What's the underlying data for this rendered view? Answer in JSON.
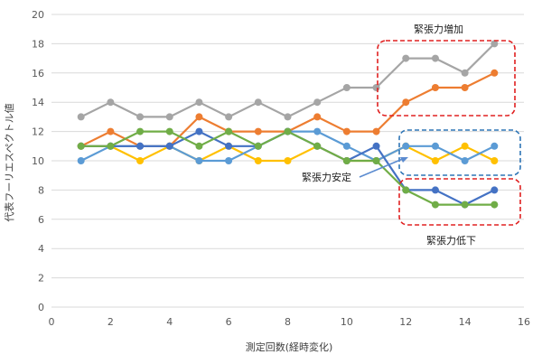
{
  "chart_data": {
    "type": "line",
    "xlabel": "測定回数(経時変化)",
    "ylabel": "代表フーリエスペクトル値",
    "xlim": [
      0,
      16
    ],
    "ylim": [
      0,
      20
    ],
    "xticks": [
      0,
      2,
      4,
      6,
      8,
      10,
      12,
      14,
      16
    ],
    "yticks": [
      0,
      2,
      4,
      6,
      8,
      10,
      12,
      14,
      16,
      18,
      20
    ],
    "grid": true,
    "legend": "none",
    "x": [
      1,
      2,
      3,
      4,
      5,
      6,
      7,
      8,
      9,
      10,
      11,
      12,
      13,
      14,
      15
    ],
    "series": [
      {
        "color": "#A5A5A5",
        "values": [
          13,
          14,
          13,
          13,
          14,
          13,
          14,
          13,
          14,
          15,
          15,
          17,
          17,
          16,
          18
        ]
      },
      {
        "color": "#ED7D31",
        "values": [
          11,
          12,
          11,
          11,
          13,
          12,
          12,
          12,
          13,
          12,
          12,
          14,
          15,
          15,
          16
        ]
      },
      {
        "color": "#FFC000",
        "values": [
          11,
          11,
          10,
          11,
          10,
          11,
          10,
          10,
          11,
          10,
          10,
          11,
          10,
          11,
          10
        ]
      },
      {
        "color": "#5B9BD5",
        "values": [
          10,
          11,
          11,
          11,
          10,
          10,
          11,
          12,
          12,
          11,
          10,
          11,
          11,
          10,
          11
        ]
      },
      {
        "color": "#4472C4",
        "values": [
          11,
          11,
          11,
          11,
          12,
          11,
          11,
          12,
          11,
          10,
          11,
          8,
          8,
          7,
          8
        ]
      },
      {
        "color": "#70AD47",
        "values": [
          11,
          11,
          12,
          12,
          11,
          12,
          11,
          12,
          11,
          10,
          10,
          8,
          7,
          7,
          7
        ]
      }
    ],
    "annotations": [
      {
        "text": "緊張力増加",
        "color": "#E02020"
      },
      {
        "text": "緊張力安定",
        "color": "#2E75B6"
      },
      {
        "text": "緊張力低下",
        "color": "#E02020"
      }
    ]
  }
}
